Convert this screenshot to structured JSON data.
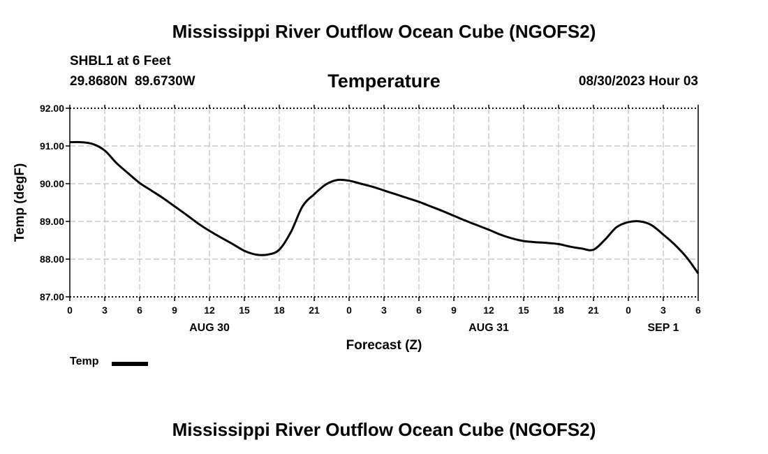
{
  "header": {
    "title": "Mississippi River Outflow Ocean Cube (NGOFS2)",
    "station": "SHBL1 at 6 Feet",
    "latitude": "29.8680N",
    "longitude": "89.6730W",
    "datetime": "08/30/2023 Hour 03"
  },
  "footer": {
    "title": "Mississippi River Outflow Ocean Cube (NGOFS2)"
  },
  "legend": {
    "label": "Temp",
    "color": "#000000"
  },
  "chart_data": {
    "type": "line",
    "title": "Temperature",
    "xlabel": "Forecast (Z)",
    "ylabel": "Temp (degF)",
    "xlim": [
      0,
      54
    ],
    "ylim": [
      87.0,
      92.0
    ],
    "yticks": [
      "87.00",
      "88.00",
      "89.00",
      "90.00",
      "91.00",
      "92.00"
    ],
    "xticks": [
      "0",
      "3",
      "6",
      "9",
      "12",
      "15",
      "18",
      "21",
      "0",
      "3",
      "6",
      "9",
      "12",
      "15",
      "18",
      "21",
      "0",
      "3",
      "6"
    ],
    "date_labels": [
      {
        "label": "AUG 30",
        "hour": 12
      },
      {
        "label": "AUG 31",
        "hour": 36
      },
      {
        "label": "SEP 1",
        "hour": 51
      }
    ],
    "grid": true,
    "series": [
      {
        "name": "Temp",
        "x": [
          0,
          1,
          2,
          3,
          4,
          5,
          6,
          7,
          8,
          9,
          10,
          11,
          12,
          13,
          14,
          15,
          16,
          17,
          18,
          19,
          20,
          21,
          22,
          23,
          24,
          25,
          26,
          27,
          28,
          29,
          30,
          31,
          32,
          33,
          34,
          35,
          36,
          37,
          38,
          39,
          40,
          41,
          42,
          43,
          44,
          45,
          46,
          47,
          48,
          49,
          50,
          51,
          52,
          53,
          54
        ],
        "values": [
          91.1,
          91.1,
          91.05,
          90.88,
          90.55,
          90.28,
          90.02,
          89.82,
          89.62,
          89.4,
          89.18,
          88.95,
          88.75,
          88.57,
          88.4,
          88.22,
          88.12,
          88.12,
          88.25,
          88.72,
          89.4,
          89.72,
          89.98,
          90.1,
          90.08,
          90.0,
          89.92,
          89.82,
          89.72,
          89.62,
          89.52,
          89.4,
          89.28,
          89.15,
          89.02,
          88.9,
          88.78,
          88.65,
          88.55,
          88.48,
          88.45,
          88.43,
          88.4,
          88.33,
          88.28,
          88.25,
          88.52,
          88.85,
          88.98,
          89.0,
          88.9,
          88.65,
          88.38,
          88.05,
          87.62
        ]
      }
    ]
  }
}
